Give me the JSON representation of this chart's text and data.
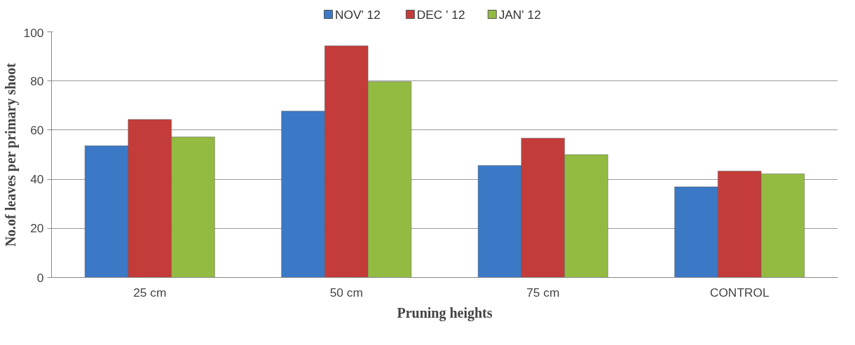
{
  "chart_data": {
    "type": "bar",
    "xlabel": "Pruning heights",
    "ylabel": "No.of leaves per primary shoot",
    "categories": [
      "25 cm",
      "50 cm",
      "75 cm",
      "CONTROL"
    ],
    "series": [
      {
        "name": "NOV' 12",
        "color": "#3b78c6",
        "values": [
          53.6,
          67.7,
          45.6,
          36.9
        ]
      },
      {
        "name": "DEC ' 12",
        "color": "#c43c3a",
        "values": [
          64.3,
          94.3,
          56.7,
          43.3
        ]
      },
      {
        "name": "JAN' 12",
        "color": "#93bb42",
        "values": [
          57.2,
          79.7,
          50,
          42.2
        ]
      }
    ],
    "ylim": [
      0,
      100
    ],
    "yticks": [
      0,
      20,
      40,
      60,
      80,
      100
    ],
    "grid": "y",
    "legend": "top"
  }
}
